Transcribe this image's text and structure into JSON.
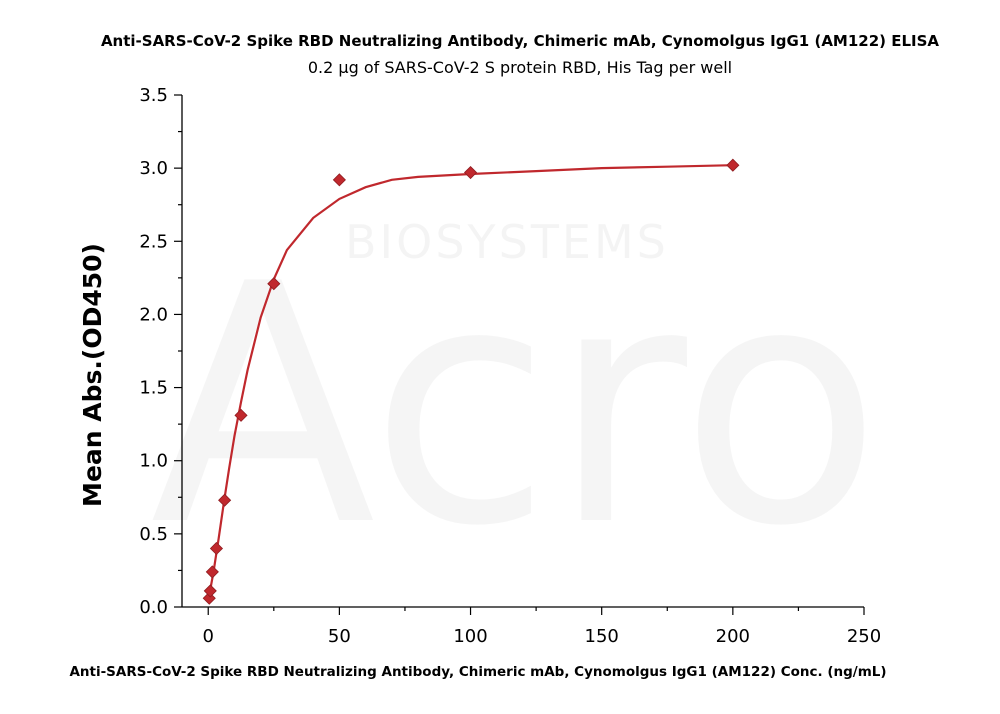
{
  "watermark": {
    "text": "Acro",
    "subtext": "BIOSYSTEMS"
  },
  "chart_data": {
    "type": "scatter",
    "title": "Anti-SARS-CoV-2 Spike RBD Neutralizing Antibody, Chimeric mAb, Cynomolgus IgG1 (AM122) ELISA",
    "subtitle": "0.2 μg of SARS-CoV-2 S protein RBD, His Tag per well",
    "xlabel": "Anti-SARS-CoV-2 Spike RBD Neutralizing Antibody, Chimeric mAb, Cynomolgus IgG1 (AM122) Conc. (ng/mL)",
    "ylabel": "Mean Abs.(OD450)",
    "xlim": [
      -10,
      250
    ],
    "ylim": [
      0,
      3.5
    ],
    "xticks": [
      0,
      50,
      100,
      150,
      200,
      250
    ],
    "xtick_labels": [
      "0",
      "50",
      "100",
      "150",
      "200",
      "250"
    ],
    "yticks": [
      0,
      0.5,
      1.0,
      1.5,
      2.0,
      2.5,
      3.0,
      3.5
    ],
    "ytick_labels": [
      "0.0",
      "0.5",
      "1.0",
      "1.5",
      "2.0",
      "2.5",
      "3.0",
      "3.5"
    ],
    "grid": false,
    "series_color": "#c0282d",
    "marker": "diamond",
    "points": [
      {
        "x": 0.39,
        "y": 0.06
      },
      {
        "x": 0.78,
        "y": 0.11
      },
      {
        "x": 1.56,
        "y": 0.24
      },
      {
        "x": 3.13,
        "y": 0.4
      },
      {
        "x": 6.25,
        "y": 0.73
      },
      {
        "x": 12.5,
        "y": 1.31
      },
      {
        "x": 25,
        "y": 2.21
      },
      {
        "x": 50,
        "y": 2.92
      },
      {
        "x": 100,
        "y": 2.97
      },
      {
        "x": 200,
        "y": 3.02
      }
    ],
    "fit_curve": [
      {
        "x": 0,
        "y": 0.04
      },
      {
        "x": 2,
        "y": 0.24
      },
      {
        "x": 4,
        "y": 0.47
      },
      {
        "x": 6,
        "y": 0.72
      },
      {
        "x": 8,
        "y": 0.95
      },
      {
        "x": 10,
        "y": 1.17
      },
      {
        "x": 12.5,
        "y": 1.4
      },
      {
        "x": 15,
        "y": 1.62
      },
      {
        "x": 20,
        "y": 1.98
      },
      {
        "x": 25,
        "y": 2.24
      },
      {
        "x": 30,
        "y": 2.44
      },
      {
        "x": 40,
        "y": 2.66
      },
      {
        "x": 50,
        "y": 2.79
      },
      {
        "x": 60,
        "y": 2.87
      },
      {
        "x": 70,
        "y": 2.92
      },
      {
        "x": 80,
        "y": 2.94
      },
      {
        "x": 100,
        "y": 2.96
      },
      {
        "x": 125,
        "y": 2.98
      },
      {
        "x": 150,
        "y": 3.0
      },
      {
        "x": 175,
        "y": 3.01
      },
      {
        "x": 200,
        "y": 3.02
      }
    ]
  }
}
